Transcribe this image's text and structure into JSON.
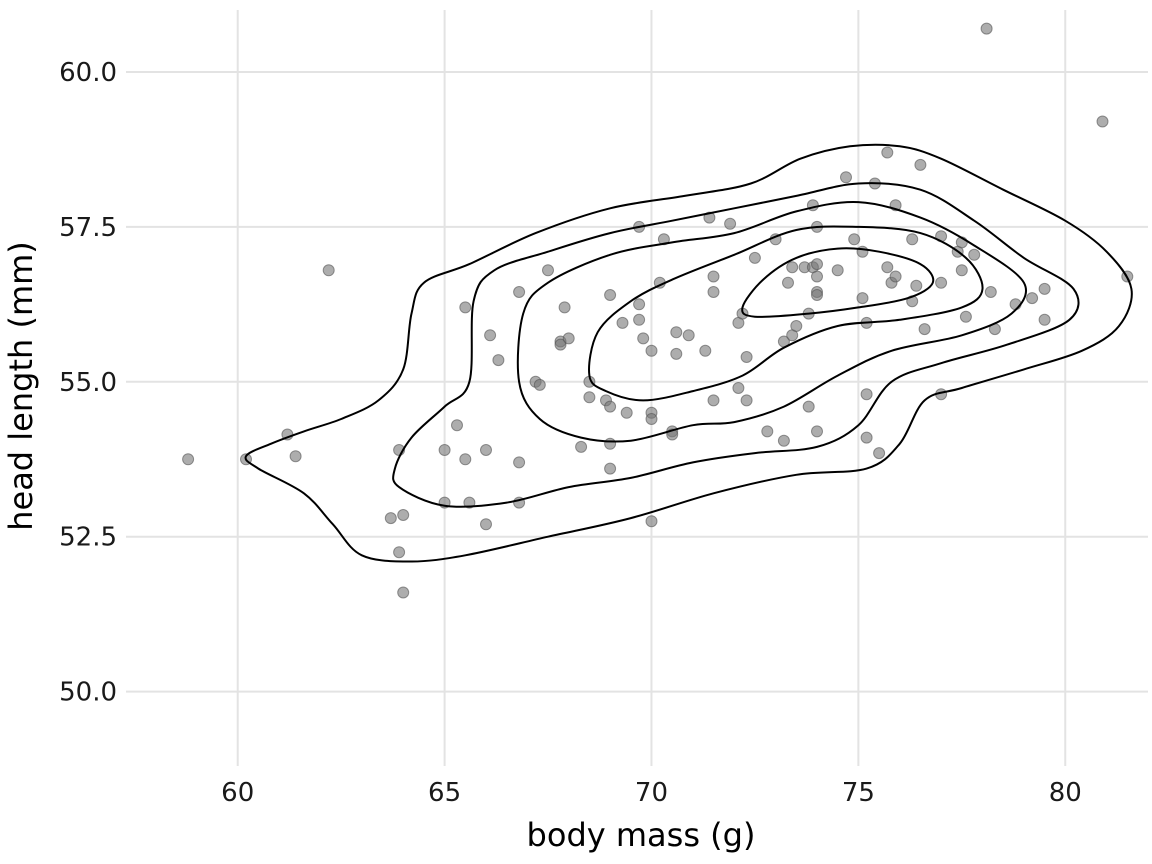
{
  "chart_data": {
    "type": "scatter",
    "title": "",
    "xlabel": "body mass (g)",
    "ylabel": "head length (mm)",
    "xlim": [
      57.3,
      82.0
    ],
    "ylim": [
      48.8,
      61.0
    ],
    "x_ticks": [
      60,
      65,
      70,
      75,
      80
    ],
    "y_ticks": [
      50.0,
      52.5,
      55.0,
      57.5,
      60.0
    ],
    "x_tick_labels": [
      "60",
      "65",
      "70",
      "75",
      "80"
    ],
    "y_tick_labels": [
      "50.0",
      "52.5",
      "55.0",
      "57.5",
      "60.0"
    ],
    "grid": true,
    "legend": "none",
    "point_color": "#777777",
    "contour_color": "#000000",
    "points": [
      [
        58.8,
        53.75
      ],
      [
        60.2,
        53.75
      ],
      [
        61.2,
        54.15
      ],
      [
        61.4,
        53.8
      ],
      [
        62.2,
        56.8
      ],
      [
        63.7,
        52.8
      ],
      [
        63.9,
        52.25
      ],
      [
        64.0,
        51.6
      ],
      [
        64.0,
        52.85
      ],
      [
        63.9,
        53.9
      ],
      [
        65.0,
        53.05
      ],
      [
        65.0,
        53.9
      ],
      [
        65.3,
        54.3
      ],
      [
        65.5,
        53.75
      ],
      [
        65.6,
        53.05
      ],
      [
        65.5,
        56.2
      ],
      [
        66.0,
        53.9
      ],
      [
        66.0,
        52.7
      ],
      [
        66.1,
        55.75
      ],
      [
        66.3,
        55.35
      ],
      [
        66.8,
        53.05
      ],
      [
        66.8,
        53.7
      ],
      [
        66.8,
        56.45
      ],
      [
        67.2,
        55.0
      ],
      [
        67.3,
        54.95
      ],
      [
        67.5,
        56.8
      ],
      [
        67.8,
        55.65
      ],
      [
        67.8,
        55.6
      ],
      [
        67.9,
        56.2
      ],
      [
        68.0,
        55.7
      ],
      [
        68.3,
        53.95
      ],
      [
        68.5,
        55.0
      ],
      [
        68.5,
        54.75
      ],
      [
        68.9,
        54.7
      ],
      [
        69.0,
        54.6
      ],
      [
        69.0,
        53.6
      ],
      [
        69.0,
        54.0
      ],
      [
        69.0,
        56.4
      ],
      [
        69.3,
        55.95
      ],
      [
        69.4,
        54.5
      ],
      [
        69.7,
        56.25
      ],
      [
        69.7,
        56.0
      ],
      [
        69.7,
        57.5
      ],
      [
        69.8,
        55.7
      ],
      [
        70.0,
        54.5
      ],
      [
        70.0,
        54.4
      ],
      [
        70.0,
        55.5
      ],
      [
        70.0,
        52.75
      ],
      [
        70.2,
        56.6
      ],
      [
        70.3,
        57.3
      ],
      [
        70.5,
        54.2
      ],
      [
        70.5,
        54.15
      ],
      [
        70.6,
        55.8
      ],
      [
        70.6,
        55.45
      ],
      [
        70.9,
        55.75
      ],
      [
        71.3,
        55.5
      ],
      [
        71.4,
        57.65
      ],
      [
        71.5,
        56.7
      ],
      [
        71.5,
        56.45
      ],
      [
        71.5,
        54.7
      ],
      [
        71.9,
        57.55
      ],
      [
        72.1,
        54.9
      ],
      [
        72.1,
        55.95
      ],
      [
        72.2,
        56.1
      ],
      [
        72.3,
        55.4
      ],
      [
        72.3,
        54.7
      ],
      [
        72.5,
        57.0
      ],
      [
        72.8,
        54.2
      ],
      [
        73.0,
        57.3
      ],
      [
        73.2,
        55.65
      ],
      [
        73.2,
        54.05
      ],
      [
        73.3,
        56.6
      ],
      [
        73.4,
        55.75
      ],
      [
        73.4,
        56.85
      ],
      [
        73.5,
        55.9
      ],
      [
        73.7,
        56.85
      ],
      [
        73.8,
        56.1
      ],
      [
        73.8,
        54.6
      ],
      [
        73.9,
        56.85
      ],
      [
        73.9,
        57.85
      ],
      [
        74.0,
        56.9
      ],
      [
        74.0,
        56.7
      ],
      [
        74.0,
        56.45
      ],
      [
        74.0,
        56.4
      ],
      [
        74.0,
        57.5
      ],
      [
        74.0,
        54.2
      ],
      [
        74.5,
        56.8
      ],
      [
        74.7,
        58.3
      ],
      [
        74.9,
        57.3
      ],
      [
        75.1,
        57.1
      ],
      [
        75.1,
        56.35
      ],
      [
        75.2,
        55.95
      ],
      [
        75.2,
        54.8
      ],
      [
        75.2,
        54.1
      ],
      [
        75.4,
        58.2
      ],
      [
        75.5,
        53.85
      ],
      [
        75.7,
        58.7
      ],
      [
        75.7,
        56.85
      ],
      [
        75.8,
        56.6
      ],
      [
        75.9,
        57.85
      ],
      [
        75.9,
        56.7
      ],
      [
        76.3,
        56.3
      ],
      [
        76.3,
        57.3
      ],
      [
        76.4,
        56.55
      ],
      [
        76.5,
        58.5
      ],
      [
        76.6,
        55.85
      ],
      [
        77.0,
        57.35
      ],
      [
        77.0,
        56.6
      ],
      [
        77.0,
        54.8
      ],
      [
        77.4,
        57.1
      ],
      [
        77.5,
        57.25
      ],
      [
        77.5,
        56.8
      ],
      [
        77.6,
        56.05
      ],
      [
        77.8,
        57.05
      ],
      [
        78.1,
        60.7
      ],
      [
        78.2,
        56.45
      ],
      [
        78.3,
        55.85
      ],
      [
        78.8,
        56.25
      ],
      [
        79.2,
        56.35
      ],
      [
        79.5,
        56.5
      ],
      [
        79.5,
        56.0
      ],
      [
        80.9,
        59.2
      ],
      [
        81.5,
        56.7
      ]
    ],
    "contours": [
      {
        "level": 1,
        "path": [
          [
            60.2,
            53.8
          ],
          [
            60.8,
            54.0
          ],
          [
            61.6,
            54.2
          ],
          [
            62.5,
            54.4
          ],
          [
            63.4,
            54.7
          ],
          [
            64.0,
            55.2
          ],
          [
            64.2,
            56.1
          ],
          [
            64.5,
            56.6
          ],
          [
            65.6,
            56.9
          ],
          [
            67.2,
            57.4
          ],
          [
            69.0,
            57.8
          ],
          [
            70.8,
            58.0
          ],
          [
            72.4,
            58.2
          ],
          [
            73.6,
            58.6
          ],
          [
            74.8,
            58.8
          ],
          [
            76.0,
            58.8
          ],
          [
            77.0,
            58.6
          ],
          [
            78.5,
            58.1
          ],
          [
            80.0,
            57.6
          ],
          [
            81.0,
            57.1
          ],
          [
            81.6,
            56.5
          ],
          [
            81.3,
            55.9
          ],
          [
            80.4,
            55.5
          ],
          [
            79.0,
            55.2
          ],
          [
            77.5,
            54.9
          ],
          [
            76.6,
            54.7
          ],
          [
            76.0,
            54.0
          ],
          [
            75.2,
            53.6
          ],
          [
            73.5,
            53.5
          ],
          [
            71.5,
            53.2
          ],
          [
            69.5,
            52.8
          ],
          [
            67.5,
            52.5
          ],
          [
            65.5,
            52.2
          ],
          [
            64.2,
            52.1
          ],
          [
            63.0,
            52.2
          ],
          [
            62.3,
            52.7
          ],
          [
            61.6,
            53.2
          ],
          [
            60.5,
            53.6
          ],
          [
            60.2,
            53.8
          ]
        ]
      },
      {
        "level": 2,
        "path": [
          [
            63.8,
            53.6
          ],
          [
            64.2,
            54.1
          ],
          [
            65.0,
            54.6
          ],
          [
            65.6,
            55.0
          ],
          [
            65.7,
            56.3
          ],
          [
            66.2,
            56.8
          ],
          [
            67.5,
            57.1
          ],
          [
            69.0,
            57.4
          ],
          [
            70.5,
            57.6
          ],
          [
            72.0,
            57.8
          ],
          [
            73.5,
            58.0
          ],
          [
            75.0,
            58.2
          ],
          [
            76.5,
            58.1
          ],
          [
            77.8,
            57.6
          ],
          [
            79.0,
            57.0
          ],
          [
            80.2,
            56.5
          ],
          [
            80.1,
            56.0
          ],
          [
            78.6,
            55.6
          ],
          [
            77.0,
            55.3
          ],
          [
            75.8,
            55.0
          ],
          [
            75.0,
            54.3
          ],
          [
            74.0,
            53.95
          ],
          [
            72.5,
            53.85
          ],
          [
            71.0,
            53.7
          ],
          [
            69.5,
            53.45
          ],
          [
            68.0,
            53.3
          ],
          [
            66.5,
            53.05
          ],
          [
            65.0,
            53.0
          ],
          [
            63.9,
            53.3
          ],
          [
            63.8,
            53.6
          ]
        ]
      },
      {
        "level": 3,
        "path": [
          [
            66.8,
            55.0
          ],
          [
            66.9,
            56.1
          ],
          [
            67.5,
            56.6
          ],
          [
            69.0,
            57.05
          ],
          [
            70.5,
            57.25
          ],
          [
            72.0,
            57.4
          ],
          [
            73.5,
            57.75
          ],
          [
            75.0,
            57.9
          ],
          [
            76.5,
            57.65
          ],
          [
            77.8,
            57.2
          ],
          [
            79.0,
            56.6
          ],
          [
            78.7,
            56.1
          ],
          [
            77.5,
            55.75
          ],
          [
            75.8,
            55.5
          ],
          [
            74.5,
            55.1
          ],
          [
            73.2,
            54.6
          ],
          [
            72.0,
            54.35
          ],
          [
            71.0,
            54.3
          ],
          [
            69.5,
            54.05
          ],
          [
            68.3,
            54.1
          ],
          [
            67.3,
            54.4
          ],
          [
            66.8,
            55.0
          ]
        ]
      },
      {
        "level": 4,
        "path": [
          [
            68.5,
            55.1
          ],
          [
            68.7,
            55.8
          ],
          [
            69.5,
            56.3
          ],
          [
            70.5,
            56.65
          ],
          [
            72.0,
            57.05
          ],
          [
            73.5,
            57.45
          ],
          [
            75.0,
            57.5
          ],
          [
            76.5,
            57.4
          ],
          [
            77.6,
            57.0
          ],
          [
            78.0,
            56.5
          ],
          [
            77.5,
            56.2
          ],
          [
            76.0,
            56.0
          ],
          [
            74.5,
            55.9
          ],
          [
            73.2,
            55.55
          ],
          [
            72.2,
            55.1
          ],
          [
            71.0,
            54.85
          ],
          [
            69.8,
            54.7
          ],
          [
            68.9,
            54.85
          ],
          [
            68.5,
            55.1
          ]
        ]
      },
      {
        "level": 5,
        "path": [
          [
            72.2,
            56.2
          ],
          [
            72.7,
            56.65
          ],
          [
            73.5,
            57.0
          ],
          [
            74.5,
            57.15
          ],
          [
            75.5,
            57.1
          ],
          [
            76.5,
            56.9
          ],
          [
            76.8,
            56.6
          ],
          [
            76.2,
            56.35
          ],
          [
            75.0,
            56.2
          ],
          [
            73.8,
            56.1
          ],
          [
            72.5,
            56.05
          ],
          [
            72.2,
            56.2
          ]
        ]
      }
    ]
  }
}
